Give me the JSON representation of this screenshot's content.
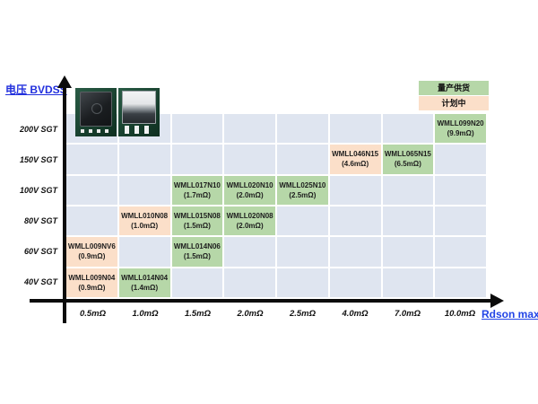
{
  "y_axis": {
    "title": "电压 BVDSS",
    "labels": [
      "200V SGT",
      "150V SGT",
      "100V SGT",
      "80V SGT",
      "60V SGT",
      "40V SGT"
    ]
  },
  "x_axis": {
    "title": "Rdson max",
    "labels": [
      "0.5mΩ",
      "1.0mΩ",
      "1.5mΩ",
      "2.0mΩ",
      "2.5mΩ",
      "4.0mΩ",
      "7.0mΩ",
      "10.0mΩ"
    ]
  },
  "legend": {
    "items": [
      {
        "label": "量产供货",
        "color": "#b6d7a8",
        "status_key": "mass_production"
      },
      {
        "label": "计划中",
        "color": "#fbdfc9",
        "status_key": "planned"
      }
    ]
  },
  "colors": {
    "grid_cell": "#dfe5f0",
    "mass_production": "#b6d7a8",
    "planned": "#fbdfc9",
    "axis": "#0b0b0b",
    "accent_blue": "#2230dd"
  },
  "chart_data": {
    "type": "heatmap",
    "title": "",
    "xlabel": "Rdson max",
    "ylabel": "电压 BVDSS",
    "x_categories": [
      "0.5mΩ",
      "1.0mΩ",
      "1.5mΩ",
      "2.0mΩ",
      "2.5mΩ",
      "4.0mΩ",
      "7.0mΩ",
      "10.0mΩ"
    ],
    "y_categories": [
      "200V SGT",
      "150V SGT",
      "100V SGT",
      "80V SGT",
      "60V SGT",
      "40V SGT"
    ],
    "legend_position": "top-right",
    "grid": true,
    "products": [
      {
        "name": "WMLL099N20",
        "rdson": "(9.9mΩ)",
        "voltage": "200V SGT",
        "row": 0,
        "col": 7,
        "status": "量产供货"
      },
      {
        "name": "WMLL046N15",
        "rdson": "(4.6mΩ)",
        "voltage": "150V SGT",
        "row": 1,
        "col": 5,
        "status": "计划中"
      },
      {
        "name": "WMLL065N15",
        "rdson": "(6.5mΩ)",
        "voltage": "150V SGT",
        "row": 1,
        "col": 6,
        "status": "量产供货"
      },
      {
        "name": "WMLL017N10",
        "rdson": "(1.7mΩ)",
        "voltage": "100V SGT",
        "row": 2,
        "col": 2,
        "status": "量产供货"
      },
      {
        "name": "WMLL020N10",
        "rdson": "(2.0mΩ)",
        "voltage": "100V SGT",
        "row": 2,
        "col": 3,
        "status": "量产供货"
      },
      {
        "name": "WMLL025N10",
        "rdson": "(2.5mΩ)",
        "voltage": "100V SGT",
        "row": 2,
        "col": 4,
        "status": "量产供货"
      },
      {
        "name": "WMLL010N08",
        "rdson": "(1.0mΩ)",
        "voltage": "80V SGT",
        "row": 3,
        "col": 1,
        "status": "计划中"
      },
      {
        "name": "WMLL015N08",
        "rdson": "(1.5mΩ)",
        "voltage": "80V SGT",
        "row": 3,
        "col": 2,
        "status": "量产供货"
      },
      {
        "name": "WMLL020N08",
        "rdson": "(2.0mΩ)",
        "voltage": "80V SGT",
        "row": 3,
        "col": 3,
        "status": "量产供货"
      },
      {
        "name": "WMLL009NV6",
        "rdson": "(0.9mΩ)",
        "voltage": "60V SGT",
        "row": 4,
        "col": 0,
        "status": "计划中"
      },
      {
        "name": "WMLL014N06",
        "rdson": "(1.5mΩ)",
        "voltage": "60V SGT",
        "row": 4,
        "col": 2,
        "status": "量产供货"
      },
      {
        "name": "WMLL009N04",
        "rdson": "(0.9mΩ)",
        "voltage": "40V SGT",
        "row": 5,
        "col": 0,
        "status": "计划中"
      },
      {
        "name": "WMLL014N04",
        "rdson": "(1.4mΩ)",
        "voltage": "40V SGT",
        "row": 5,
        "col": 1,
        "status": "量产供货"
      }
    ]
  }
}
